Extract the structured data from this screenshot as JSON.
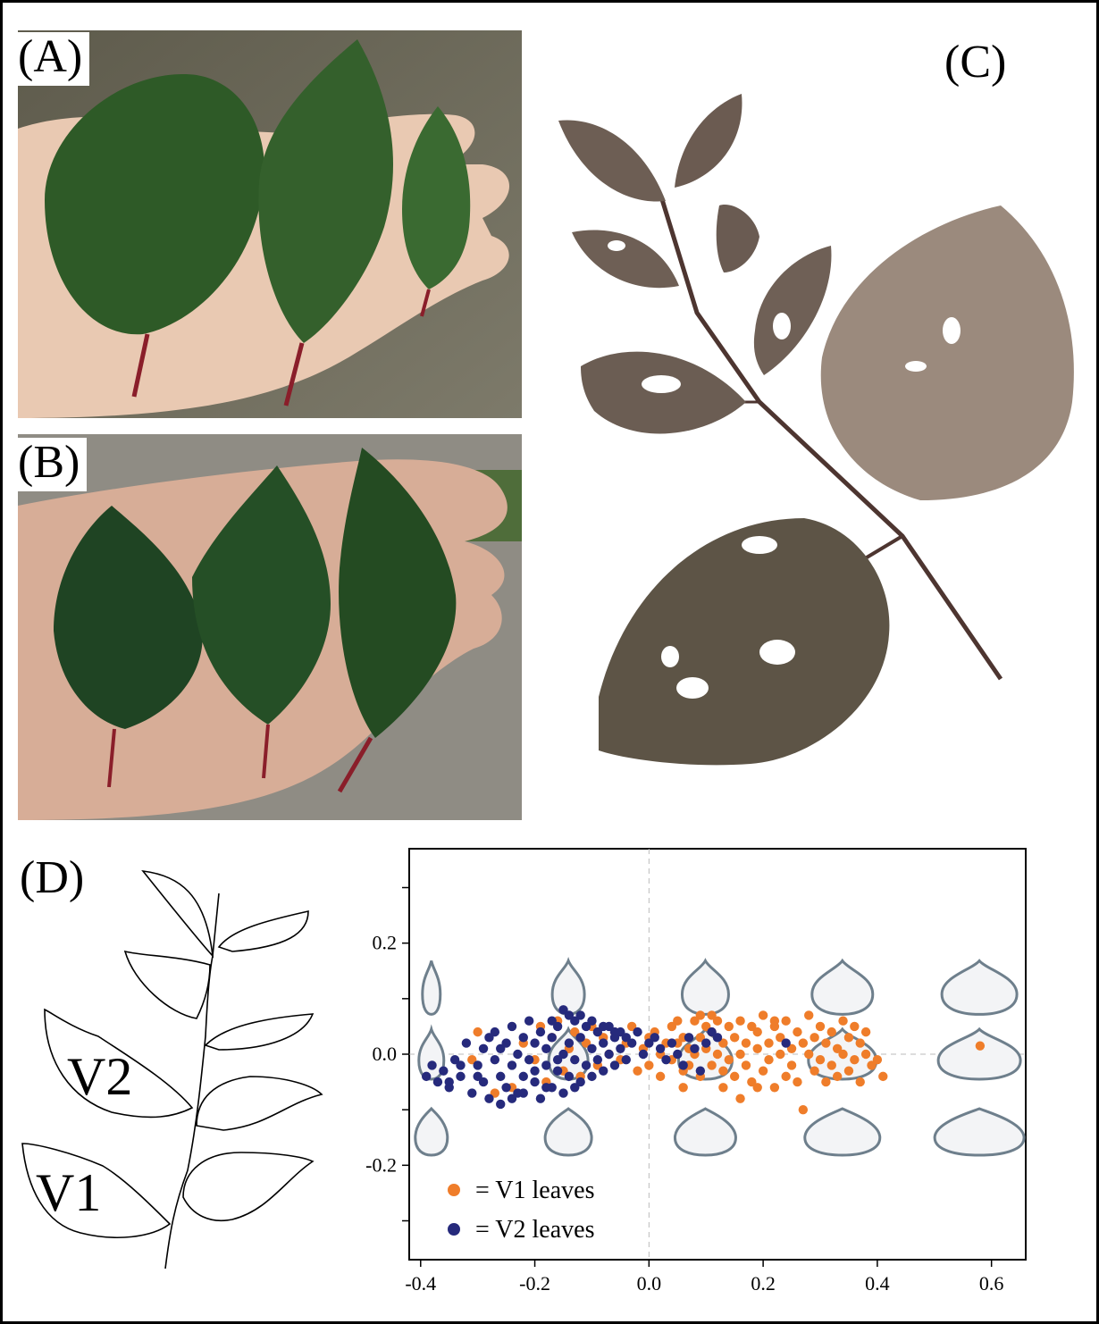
{
  "panels": {
    "a_label": "(A)",
    "b_label": "(B)",
    "c_label": "(C)",
    "d_label": "(D)"
  },
  "drawing": {
    "v2_label": "V2",
    "v1_label": "V1"
  },
  "colors": {
    "v1": "#ef7d2a",
    "v2": "#262a7c",
    "outline_shape": "#6e7f8c"
  },
  "legend": {
    "v1_text": "= V1 leaves",
    "v2_text": "= V2 leaves"
  },
  "chart_data": {
    "type": "scatter",
    "xlim": [
      -0.42,
      0.66
    ],
    "ylim": [
      -0.37,
      0.37
    ],
    "x_ticks": [
      "-0.4",
      "-0.2",
      "0.0",
      "0.2",
      "0.4",
      "0.6"
    ],
    "y_ticks": [
      "0.2",
      "0.0",
      "-0.2"
    ],
    "reference_lines": [
      "x = 0",
      "y = 0"
    ],
    "grid": false,
    "legend_position": "bottom-left",
    "series": [
      {
        "name": "V1 leaves",
        "points": [
          [
            -0.31,
            -0.01
          ],
          [
            -0.3,
            0.04
          ],
          [
            -0.27,
            -0.07
          ],
          [
            -0.24,
            -0.06
          ],
          [
            -0.22,
            0.02
          ],
          [
            -0.2,
            -0.01
          ],
          [
            -0.19,
            0.05
          ],
          [
            -0.18,
            -0.05
          ],
          [
            -0.17,
            0.03
          ],
          [
            -0.16,
            0.06
          ],
          [
            -0.15,
            -0.03
          ],
          [
            -0.14,
            0.01
          ],
          [
            -0.13,
            0.04
          ],
          [
            -0.12,
            -0.04
          ],
          [
            -0.11,
            0.02
          ],
          [
            -0.1,
            0.05
          ],
          [
            -0.09,
            -0.02
          ],
          [
            -0.08,
            0.03
          ],
          [
            -0.07,
            0.0
          ],
          [
            -0.06,
            0.04
          ],
          [
            -0.05,
            -0.01
          ],
          [
            -0.04,
            0.02
          ],
          [
            -0.03,
            0.05
          ],
          [
            -0.02,
            -0.03
          ],
          [
            -0.01,
            0.01
          ],
          [
            0.0,
            0.03
          ],
          [
            0.0,
            -0.02
          ],
          [
            0.01,
            0.04
          ],
          [
            0.02,
            0.0
          ],
          [
            0.02,
            -0.04
          ],
          [
            0.03,
            0.02
          ],
          [
            0.04,
            0.05
          ],
          [
            0.04,
            -0.01
          ],
          [
            0.05,
            0.02
          ],
          [
            0.06,
            -0.03
          ],
          [
            0.06,
            0.03
          ],
          [
            0.07,
            0.01
          ],
          [
            0.07,
            -0.02
          ],
          [
            0.08,
            0.06
          ],
          [
            0.08,
            0.0
          ],
          [
            0.09,
            0.03
          ],
          [
            0.09,
            -0.04
          ],
          [
            0.1,
            0.05
          ],
          [
            0.1,
            0.01
          ],
          [
            0.11,
            -0.02
          ],
          [
            0.11,
            0.04
          ],
          [
            0.12,
            0.0
          ],
          [
            0.12,
            0.06
          ],
          [
            0.13,
            -0.03
          ],
          [
            0.13,
            0.02
          ],
          [
            0.14,
            0.05
          ],
          [
            0.14,
            -0.01
          ],
          [
            0.15,
            0.03
          ],
          [
            0.15,
            -0.04
          ],
          [
            0.16,
            0.06
          ],
          [
            0.16,
            0.0
          ],
          [
            0.17,
            0.02
          ],
          [
            0.17,
            -0.02
          ],
          [
            0.18,
            0.05
          ],
          [
            0.18,
            -0.05
          ],
          [
            0.19,
            0.01
          ],
          [
            0.19,
            0.04
          ],
          [
            0.2,
            -0.03
          ],
          [
            0.2,
            0.07
          ],
          [
            0.21,
            0.02
          ],
          [
            0.21,
            -0.01
          ],
          [
            0.22,
            0.05
          ],
          [
            0.22,
            -0.06
          ],
          [
            0.23,
            0.0
          ],
          [
            0.23,
            0.03
          ],
          [
            0.24,
            -0.04
          ],
          [
            0.24,
            0.06
          ],
          [
            0.25,
            0.01
          ],
          [
            0.25,
            -0.02
          ],
          [
            0.26,
            0.04
          ],
          [
            0.26,
            -0.05
          ],
          [
            0.27,
            0.02
          ],
          [
            0.27,
            -0.1
          ],
          [
            0.28,
            0.0
          ],
          [
            0.28,
            0.07
          ],
          [
            0.29,
            -0.03
          ],
          [
            0.29,
            0.03
          ],
          [
            0.3,
            0.05
          ],
          [
            0.3,
            -0.01
          ],
          [
            0.31,
            0.02
          ],
          [
            0.31,
            -0.05
          ],
          [
            0.32,
            0.04
          ],
          [
            0.32,
            -0.02
          ],
          [
            0.33,
            0.01
          ],
          [
            0.33,
            -0.04
          ],
          [
            0.34,
            0.06
          ],
          [
            0.34,
            0.0
          ],
          [
            0.35,
            -0.03
          ],
          [
            0.35,
            0.03
          ],
          [
            0.36,
            0.05
          ],
          [
            0.36,
            -0.01
          ],
          [
            0.37,
            0.02
          ],
          [
            0.37,
            -0.05
          ],
          [
            0.38,
            0.04
          ],
          [
            0.38,
            0.0
          ],
          [
            0.39,
            -0.02
          ],
          [
            0.4,
            -0.01
          ],
          [
            0.41,
            -0.04
          ],
          [
            0.58,
            0.015
          ],
          [
            0.05,
            0.06
          ],
          [
            0.09,
            0.07
          ],
          [
            0.13,
            -0.06
          ],
          [
            0.16,
            -0.08
          ],
          [
            0.06,
            -0.06
          ],
          [
            0.11,
            0.07
          ],
          [
            0.19,
            -0.06
          ],
          [
            0.22,
            0.06
          ]
        ]
      },
      {
        "name": "V2 leaves",
        "points": [
          [
            -0.39,
            -0.04
          ],
          [
            -0.38,
            -0.02
          ],
          [
            -0.37,
            -0.05
          ],
          [
            -0.36,
            -0.03
          ],
          [
            -0.35,
            -0.06
          ],
          [
            -0.34,
            -0.01
          ],
          [
            -0.33,
            -0.04
          ],
          [
            -0.32,
            0.02
          ],
          [
            -0.31,
            -0.07
          ],
          [
            -0.3,
            -0.02
          ],
          [
            -0.29,
            0.01
          ],
          [
            -0.29,
            -0.05
          ],
          [
            -0.28,
            0.03
          ],
          [
            -0.28,
            -0.08
          ],
          [
            -0.27,
            -0.01
          ],
          [
            -0.27,
            0.04
          ],
          [
            -0.26,
            -0.04
          ],
          [
            -0.26,
            0.01
          ],
          [
            -0.25,
            -0.06
          ],
          [
            -0.25,
            0.02
          ],
          [
            -0.24,
            -0.02
          ],
          [
            -0.24,
            0.05
          ],
          [
            -0.23,
            -0.07
          ],
          [
            -0.23,
            0.0
          ],
          [
            -0.22,
            0.03
          ],
          [
            -0.22,
            -0.04
          ],
          [
            -0.21,
            0.06
          ],
          [
            -0.21,
            -0.01
          ],
          [
            -0.2,
            -0.05
          ],
          [
            -0.2,
            0.02
          ],
          [
            -0.19,
            -0.08
          ],
          [
            -0.19,
            0.04
          ],
          [
            -0.18,
            -0.02
          ],
          [
            -0.18,
            0.01
          ],
          [
            -0.17,
            -0.06
          ],
          [
            -0.17,
            0.03
          ],
          [
            -0.16,
            -0.03
          ],
          [
            -0.16,
            0.05
          ],
          [
            -0.15,
            -0.07
          ],
          [
            -0.15,
            0.0
          ],
          [
            -0.15,
            0.08
          ],
          [
            -0.14,
            0.02
          ],
          [
            -0.14,
            -0.04
          ],
          [
            -0.13,
            0.06
          ],
          [
            -0.13,
            -0.01
          ],
          [
            -0.12,
            0.03
          ],
          [
            -0.12,
            -0.05
          ],
          [
            -0.11,
            0.05
          ],
          [
            -0.11,
            -0.02
          ],
          [
            -0.1,
            0.01
          ],
          [
            -0.1,
            -0.04
          ],
          [
            -0.09,
            0.04
          ],
          [
            -0.09,
            -0.01
          ],
          [
            -0.08,
            0.02
          ],
          [
            -0.08,
            -0.03
          ],
          [
            -0.07,
            0.05
          ],
          [
            -0.07,
            0.0
          ],
          [
            -0.06,
            0.03
          ],
          [
            -0.06,
            -0.02
          ],
          [
            -0.05,
            0.04
          ],
          [
            -0.05,
            0.01
          ],
          [
            -0.04,
            -0.01
          ],
          [
            -0.04,
            0.03
          ],
          [
            -0.03,
            0.02
          ],
          [
            -0.02,
            0.04
          ],
          [
            -0.01,
            0.0
          ],
          [
            0.0,
            0.02
          ],
          [
            0.01,
            0.03
          ],
          [
            0.02,
            0.01
          ],
          [
            0.03,
            -0.01
          ],
          [
            0.04,
            0.02
          ],
          [
            0.05,
            0.0
          ],
          [
            0.06,
            -0.02
          ],
          [
            0.07,
            0.03
          ],
          [
            0.08,
            0.01
          ],
          [
            0.09,
            -0.03
          ],
          [
            0.1,
            0.02
          ],
          [
            0.11,
            0.04
          ],
          [
            0.12,
            0.03
          ],
          [
            0.24,
            0.02
          ],
          [
            -0.35,
            -0.05
          ],
          [
            -0.33,
            -0.02
          ],
          [
            -0.3,
            -0.04
          ],
          [
            -0.26,
            -0.09
          ],
          [
            -0.24,
            -0.08
          ],
          [
            -0.22,
            -0.07
          ],
          [
            -0.2,
            -0.03
          ],
          [
            -0.18,
            -0.06
          ],
          [
            -0.16,
            -0.01
          ],
          [
            -0.14,
            0.07
          ],
          [
            -0.12,
            0.07
          ],
          [
            -0.1,
            0.06
          ],
          [
            -0.08,
            0.05
          ],
          [
            -0.06,
            0.04
          ],
          [
            -0.17,
            0.06
          ],
          [
            -0.13,
            -0.06
          ]
        ]
      }
    ]
  }
}
